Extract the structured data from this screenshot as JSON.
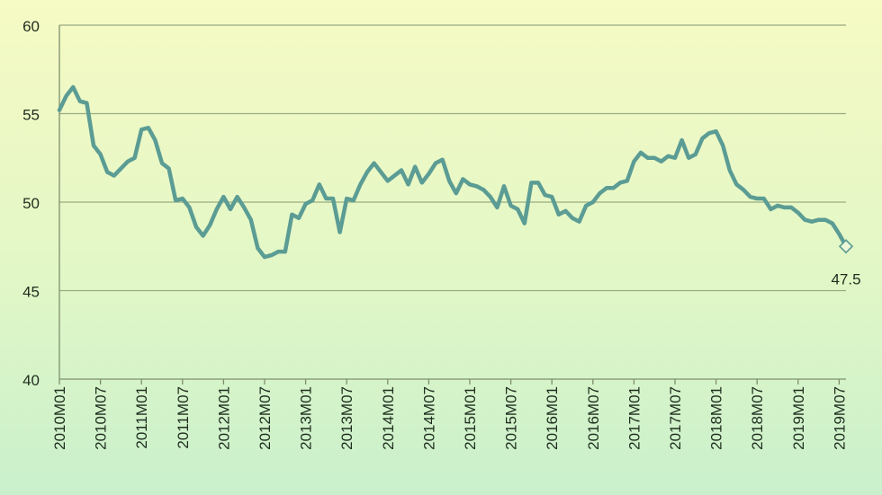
{
  "colors": {
    "line": "#5b9c94",
    "grid": "#9aaa82",
    "axis": "#7f8f6e",
    "text": "#1f2d1f"
  },
  "chart_data": {
    "type": "line",
    "title": "",
    "xlabel": "",
    "ylabel": "",
    "ylim": [
      40,
      60
    ],
    "y_ticks": [
      40,
      45,
      50,
      55,
      60
    ],
    "x_tick_labels": [
      "2010M01",
      "2010M07",
      "2011M01",
      "2011M07",
      "2012M01",
      "2012M07",
      "2013M01",
      "2013M07",
      "2014M01",
      "2014M07",
      "2015M01",
      "2015M07",
      "2016M01",
      "2016M07",
      "2017M01",
      "2017M07",
      "2018M01",
      "2018M07",
      "2019M01",
      "2019M07"
    ],
    "grid": true,
    "legend": "none",
    "end_label": "47.5",
    "series": [
      {
        "start": "2010M01",
        "frequency": "monthly",
        "values": [
          55.2,
          56.0,
          56.5,
          55.7,
          55.6,
          53.2,
          52.7,
          51.7,
          51.5,
          51.9,
          52.3,
          52.5,
          54.1,
          54.2,
          53.5,
          52.2,
          51.9,
          50.1,
          50.2,
          49.7,
          48.6,
          48.1,
          48.7,
          49.6,
          50.3,
          49.6,
          50.3,
          49.7,
          49.0,
          47.4,
          46.9,
          47.0,
          47.2,
          47.2,
          49.3,
          49.1,
          49.9,
          50.1,
          51.0,
          50.2,
          50.2,
          48.3,
          50.2,
          50.1,
          51.0,
          51.7,
          52.2,
          51.7,
          51.2,
          51.5,
          51.8,
          51.0,
          52.0,
          51.1,
          51.6,
          52.2,
          52.4,
          51.2,
          50.5,
          51.3,
          51.0,
          50.9,
          50.7,
          50.3,
          49.7,
          50.9,
          49.8,
          49.6,
          48.8,
          51.1,
          51.1,
          50.4,
          50.3,
          49.3,
          49.5,
          49.1,
          48.9,
          49.8,
          50.0,
          50.5,
          50.8,
          50.8,
          51.1,
          51.2,
          52.3,
          52.8,
          52.5,
          52.5,
          52.3,
          52.6,
          52.5,
          53.5,
          52.5,
          52.7,
          53.6,
          53.9,
          54.0,
          53.2,
          51.8,
          51.0,
          50.7,
          50.3,
          50.2,
          50.2,
          49.6,
          49.8,
          49.7,
          49.7,
          49.4,
          49.0,
          48.9,
          49.0,
          49.0,
          48.8,
          48.2,
          47.5
        ]
      }
    ]
  }
}
